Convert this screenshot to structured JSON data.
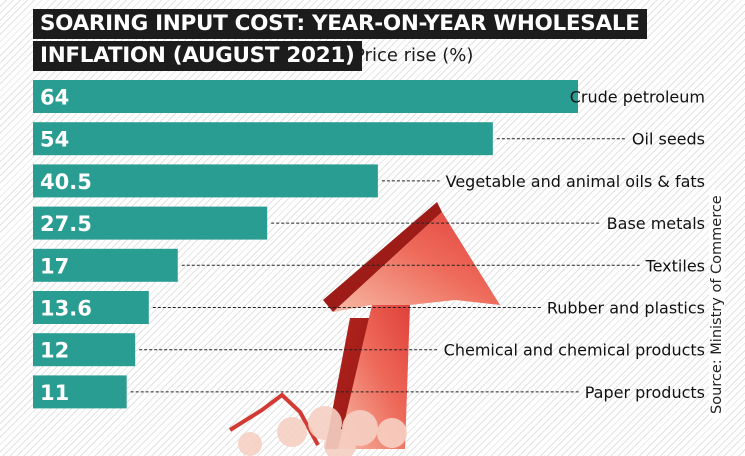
{
  "chart_data": {
    "type": "bar",
    "orientation": "horizontal",
    "title": "SOARING INPUT COST: YEAR-ON-YEAR WHOLESALE INFLATION (AUGUST 2021)",
    "title_lines": [
      "SOARING INPUT COST: YEAR-ON-YEAR WHOLESALE",
      "INFLATION (AUGUST 2021)"
    ],
    "subtitle": "Price rise (%)",
    "categories": [
      "Crude petroleum",
      "Oil seeds",
      "Vegetable and animal oils & fats",
      "Base metals",
      "Textiles",
      "Rubber and plastics",
      "Chemical and chemical products",
      "Paper products"
    ],
    "values": [
      64,
      54,
      40.5,
      27.5,
      17,
      13.6,
      12,
      11
    ],
    "value_labels": [
      "64",
      "54",
      "40.5",
      "27.5",
      "17",
      "13.6",
      "12",
      "11"
    ],
    "xlim": [
      0,
      64
    ],
    "grid": false,
    "source": "Source: Ministry of Commerce",
    "colors": {
      "bar": "#2a9d92",
      "title_bg": "#1c1c1c",
      "arrow": "#e8534a"
    }
  }
}
